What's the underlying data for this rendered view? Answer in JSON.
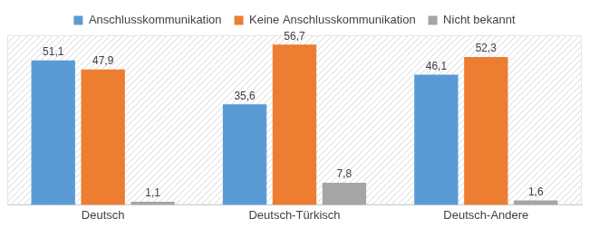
{
  "chart_data": {
    "type": "bar",
    "categories": [
      "Deutsch",
      "Deutsch-Türkisch",
      "Deutsch-Andere"
    ],
    "series": [
      {
        "name": "Anschlusskommunikation",
        "color": "#5b9bd5",
        "values": [
          51.1,
          35.6,
          46.1
        ],
        "value_labels": [
          "51,1",
          "35,6",
          "46,1"
        ]
      },
      {
        "name": "Keine Anschlusskommunikation",
        "color": "#ed7d31",
        "values": [
          47.9,
          56.7,
          52.3
        ],
        "value_labels": [
          "47,9",
          "56,7",
          "52,3"
        ]
      },
      {
        "name": "Nicht bekannt",
        "color": "#a5a5a5",
        "values": [
          1.1,
          7.8,
          1.6
        ],
        "value_labels": [
          "1,1",
          "7,8",
          "1,6"
        ]
      }
    ],
    "ylim": [
      0,
      60
    ],
    "grid": false,
    "legend": "top",
    "data_labels": true,
    "tick_labels": "x"
  }
}
